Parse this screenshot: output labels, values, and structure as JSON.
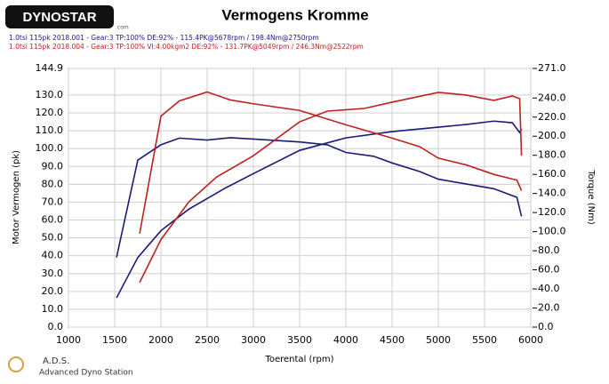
{
  "logo": {
    "brand": "DYNOSTAR",
    "suffix": ".com"
  },
  "footer": {
    "short": "A.D.S.",
    "long": "Advanced Dyno Station"
  },
  "chart_data": {
    "type": "line",
    "title": "Vermogens Kromme",
    "runs": [
      {
        "name": "1.0tsi 115pk 2018.001 - Gear:3 TP:100% DE:92%  - 115.4PK@5678rpm / 198.4Nm@2750rpm",
        "color": "#1a1a7a"
      },
      {
        "name": "1.0tsi 115pk 2018.004 - Gear:3 TP:100% VI:4.00kgm2 DE:92%  - 131.7PK@5049rpm / 246.3Nm@2522rpm",
        "color": "#c02020"
      }
    ],
    "x_label": "Toerental (rpm)",
    "y_label": "Motor Vermogen (pk)",
    "y2_label": "Torque (Nm)",
    "xlim": [
      1000,
      6000
    ],
    "xticks": [
      1000,
      1500,
      2000,
      2500,
      3000,
      3500,
      4000,
      4500,
      5000,
      5500,
      6000
    ],
    "ylim": [
      0,
      144.9
    ],
    "yticks": [
      {
        "value": 0,
        "label": "0.0"
      },
      {
        "value": 10,
        "label": "10.0"
      },
      {
        "value": 20,
        "label": "20.0"
      },
      {
        "value": 30,
        "label": "30.0"
      },
      {
        "value": 40,
        "label": "40.0"
      },
      {
        "value": 50,
        "label": "50.0"
      },
      {
        "value": 60,
        "label": "60.0"
      },
      {
        "value": 70,
        "label": "70.0"
      },
      {
        "value": 80,
        "label": "80.0"
      },
      {
        "value": 90,
        "label": "90.0"
      },
      {
        "value": 100,
        "label": "100.0"
      },
      {
        "value": 110,
        "label": "110.0"
      },
      {
        "value": 120,
        "label": "120.0"
      },
      {
        "value": 130,
        "label": "130.0"
      },
      {
        "value": 144.9,
        "label": "144.9"
      }
    ],
    "y2lim": [
      0,
      271
    ],
    "y2ticks": [
      {
        "value": 0,
        "label": "0.0"
      },
      {
        "value": 20,
        "label": "20.0"
      },
      {
        "value": 40,
        "label": "40.0"
      },
      {
        "value": 60,
        "label": "60.0"
      },
      {
        "value": 80,
        "label": "80.0"
      },
      {
        "value": 100,
        "label": "100.0"
      },
      {
        "value": 120,
        "label": "120.0"
      },
      {
        "value": 140,
        "label": "140.0"
      },
      {
        "value": 160,
        "label": "160.0"
      },
      {
        "value": 180,
        "label": "180.0"
      },
      {
        "value": 200,
        "label": "200.0"
      },
      {
        "value": 220,
        "label": "220.0"
      },
      {
        "value": 240,
        "label": "240.0"
      },
      {
        "value": 271,
        "label": "271.0"
      }
    ],
    "grid": true,
    "series": [
      {
        "color": "#1a1a7a",
        "x": [
          1520,
          1750,
          2000,
          2300,
          2700,
          3000,
          3500,
          4000,
          4500,
          5000,
          5300,
          5600,
          5800,
          5880,
          5900
        ],
        "values": [
          16.4,
          39,
          54,
          66,
          78,
          86,
          99,
          106,
          109.5,
          112,
          113.5,
          115.4,
          114.5,
          109,
          111
        ]
      },
      {
        "color": "#1a1a7a",
        "axis": "y2",
        "x": [
          1520,
          1750,
          2000,
          2200,
          2500,
          2750,
          3000,
          3500,
          3800,
          4000,
          4300,
          4500,
          4800,
          5000,
          5300,
          5600,
          5850,
          5900
        ],
        "values": [
          73,
          175,
          191,
          198,
          196,
          198.4,
          197,
          194,
          191,
          183,
          179,
          172,
          163,
          155,
          150,
          145,
          136,
          116
        ]
      },
      {
        "color": "#c02020",
        "x": [
          1770,
          2000,
          2300,
          2600,
          3000,
          3500,
          3800,
          4200,
          4500,
          5000,
          5300,
          5600,
          5800,
          5880,
          5900
        ],
        "values": [
          25,
          49,
          70,
          84,
          96,
          115,
          121,
          122.5,
          126,
          131.5,
          130,
          127,
          129.5,
          128,
          96
        ]
      },
      {
        "color": "#c02020",
        "axis": "y2",
        "x": [
          1770,
          2000,
          2200,
          2500,
          2750,
          3000,
          3500,
          4000,
          4500,
          4800,
          5000,
          5300,
          5600,
          5850,
          5900
        ],
        "values": [
          98,
          221,
          237,
          246.3,
          238,
          234,
          227,
          212,
          198,
          189,
          177,
          170,
          160,
          154,
          143
        ]
      }
    ]
  }
}
